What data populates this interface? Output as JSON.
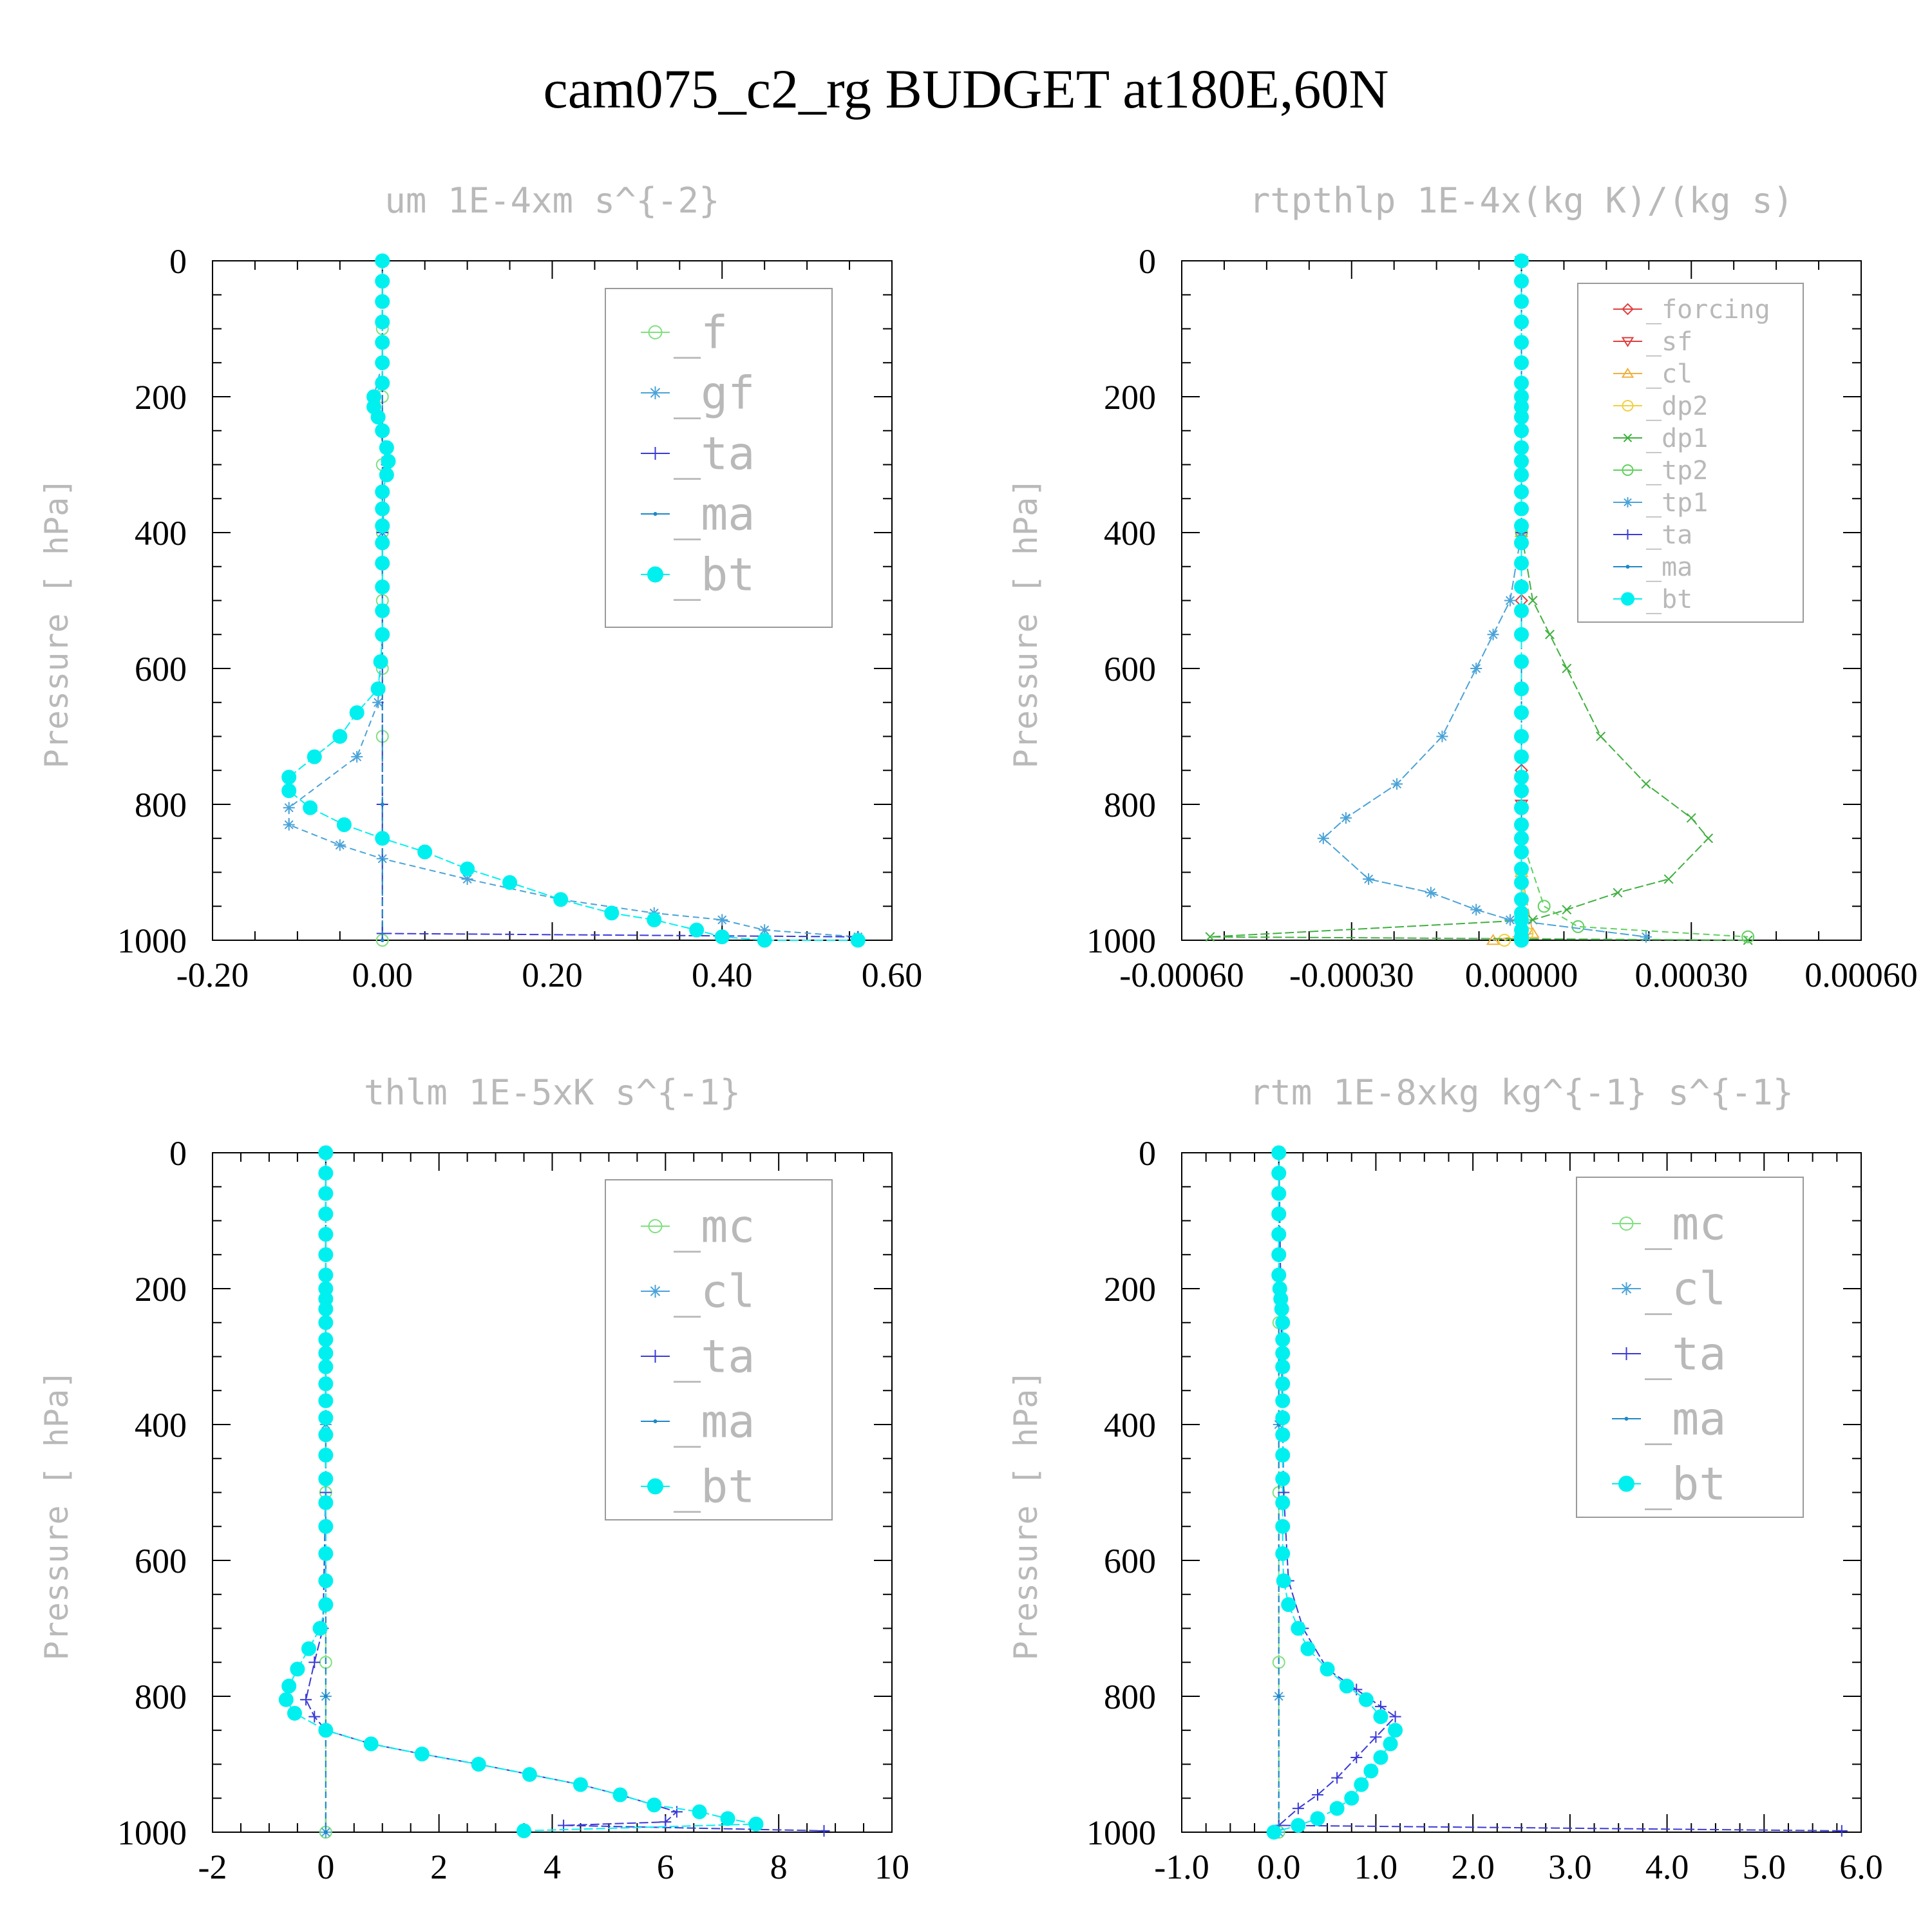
{
  "page": {
    "title": "cam075_c2_rg  BUDGET at180E,60N"
  },
  "chart_data": [
    {
      "type": "line",
      "title": "um  1E-4xm s^{-2}",
      "ylabel": "Pressure [ hPa]",
      "xlabel": "",
      "xlim": [
        -0.2,
        0.6
      ],
      "ylim": [
        1000,
        0
      ],
      "xticks": [
        "-0.20",
        "0.00",
        "0.20",
        "0.40",
        "0.60"
      ],
      "yticks": [
        "0",
        "200",
        "400",
        "600",
        "800",
        "1000"
      ],
      "legend_position": "top-right",
      "series": [
        {
          "name": "_f",
          "color": "#7fe07f",
          "marker": "circle-open",
          "x": [
            0,
            0,
            0,
            0,
            0,
            0,
            0,
            0,
            0,
            0
          ],
          "y": [
            0,
            100,
            200,
            300,
            400,
            500,
            600,
            700,
            850,
            1000
          ]
        },
        {
          "name": "_gf",
          "color": "#4aa3d8",
          "marker": "asterisk",
          "x": [
            0.0,
            0.0,
            -0.01,
            0.005,
            0.0,
            0.0,
            -0.005,
            -0.03,
            -0.11,
            -0.11,
            -0.05,
            0.0,
            0.1,
            0.21,
            0.32,
            0.4,
            0.45,
            0.56
          ],
          "y": [
            0,
            150,
            200,
            300,
            400,
            550,
            650,
            730,
            805,
            830,
            860,
            880,
            910,
            940,
            960,
            970,
            985,
            995
          ]
        },
        {
          "name": "_ta",
          "color": "#3a3ad8",
          "marker": "plus",
          "x": [
            0,
            0,
            0,
            0,
            0.56
          ],
          "y": [
            0,
            400,
            800,
            990,
            995
          ]
        },
        {
          "name": "_ma",
          "color": "#1e88c8",
          "marker": "dot",
          "x": [
            0,
            0,
            0,
            0
          ],
          "y": [
            0,
            400,
            800,
            1000
          ]
        },
        {
          "name": "_bt",
          "color": "#00f0f0",
          "marker": "filled-circle",
          "x": [
            0.0,
            0.0,
            0.0,
            0.0,
            0.0,
            0.0,
            0.0,
            -0.01,
            -0.01,
            -0.005,
            0.0,
            0.005,
            0.007,
            0.005,
            0.0,
            0.0,
            0.0,
            0.0,
            0.0,
            0.0,
            0.0,
            0.0,
            -0.002,
            -0.005,
            -0.03,
            -0.05,
            -0.08,
            -0.11,
            -0.11,
            -0.085,
            -0.045,
            0.0,
            0.05,
            0.1,
            0.15,
            0.21,
            0.27,
            0.32,
            0.37,
            0.4,
            0.45,
            0.56
          ],
          "y": [
            0,
            30,
            60,
            90,
            120,
            150,
            180,
            200,
            215,
            230,
            250,
            275,
            295,
            315,
            340,
            365,
            390,
            415,
            445,
            480,
            515,
            550,
            590,
            630,
            665,
            700,
            730,
            760,
            780,
            805,
            830,
            850,
            870,
            895,
            915,
            940,
            960,
            970,
            985,
            995,
            1000,
            1000
          ]
        }
      ]
    },
    {
      "type": "line",
      "title": "rtpthlp  1E-4x(kg K)/(kg s)",
      "ylabel": "Pressure [ hPa]",
      "xlabel": "",
      "xlim": [
        -0.0006,
        0.0006
      ],
      "ylim": [
        1000,
        0
      ],
      "xticks": [
        "-0.00060",
        "-0.00030",
        "0.00000",
        "0.00030",
        "0.00060"
      ],
      "yticks": [
        "0",
        "200",
        "400",
        "600",
        "800",
        "1000"
      ],
      "legend_position": "top-right",
      "series": [
        {
          "name": "_forcing",
          "color": "#e04040",
          "marker": "diamond",
          "x": [
            0,
            0,
            0,
            0,
            0
          ],
          "y": [
            0,
            250,
            500,
            750,
            1000
          ]
        },
        {
          "name": "_sf",
          "color": "#e04040",
          "marker": "triangle-down",
          "x": [
            0,
            0,
            0,
            0
          ],
          "y": [
            0,
            400,
            800,
            1000
          ]
        },
        {
          "name": "_cl",
          "color": "#f0b040",
          "marker": "triangle-up",
          "x": [
            0,
            0,
            0,
            2e-05,
            -5e-05
          ],
          "y": [
            0,
            400,
            900,
            990,
            1000
          ]
        },
        {
          "name": "_dp2",
          "color": "#f0d040",
          "marker": "circle-open",
          "x": [
            0,
            0,
            0,
            1e-05,
            -3e-05
          ],
          "y": [
            0,
            400,
            900,
            990,
            1000
          ]
        },
        {
          "name": "_dp1",
          "color": "#40b040",
          "marker": "cross",
          "x": [
            0.0,
            2e-05,
            5e-05,
            8e-05,
            0.00014,
            0.00022,
            0.0003,
            0.00033,
            0.00026,
            0.00017,
            8e-05,
            2e-05,
            -0.00055,
            0.0004
          ],
          "y": [
            400,
            500,
            550,
            600,
            700,
            770,
            820,
            850,
            910,
            930,
            955,
            970,
            995,
            1000
          ]
        },
        {
          "name": "_tp2",
          "color": "#60d060",
          "marker": "circle-open",
          "x": [
            0,
            0,
            0,
            4e-05,
            0.0001,
            0.0004
          ],
          "y": [
            0,
            400,
            850,
            950,
            980,
            995
          ]
        },
        {
          "name": "_tp1",
          "color": "#4aa3d8",
          "marker": "asterisk",
          "x": [
            0.0,
            -2e-05,
            -5e-05,
            -8e-05,
            -0.00014,
            -0.00022,
            -0.00031,
            -0.00035,
            -0.00027,
            -0.00016,
            -8e-05,
            -2e-05,
            0.00022
          ],
          "y": [
            400,
            500,
            550,
            600,
            700,
            770,
            820,
            850,
            910,
            930,
            955,
            970,
            995
          ]
        },
        {
          "name": "_ta",
          "color": "#3a3ad8",
          "marker": "plus",
          "x": [
            0,
            0,
            0,
            0
          ],
          "y": [
            0,
            400,
            800,
            1000
          ]
        },
        {
          "name": "_ma",
          "color": "#1e88c8",
          "marker": "dot",
          "x": [
            0,
            0,
            0,
            0
          ],
          "y": [
            0,
            400,
            800,
            1000
          ]
        },
        {
          "name": "_bt",
          "color": "#00f0f0",
          "marker": "filled-circle",
          "x": [
            0,
            0,
            0,
            0,
            0,
            0,
            0,
            0,
            0,
            0,
            0,
            0,
            0,
            0,
            0,
            0,
            0,
            0,
            0,
            0,
            0,
            0,
            0,
            0,
            0,
            0,
            0,
            0,
            0,
            0,
            0,
            0,
            0,
            0,
            0,
            0,
            0,
            0,
            0,
            0,
            0,
            0
          ],
          "y": [
            0,
            30,
            60,
            90,
            120,
            150,
            180,
            200,
            215,
            230,
            250,
            275,
            295,
            315,
            340,
            365,
            390,
            415,
            445,
            480,
            515,
            550,
            590,
            630,
            665,
            700,
            730,
            760,
            780,
            805,
            830,
            850,
            870,
            895,
            915,
            940,
            960,
            970,
            985,
            995,
            1000,
            1000
          ]
        }
      ]
    },
    {
      "type": "line",
      "title": "thlm  1E-5xK s^{-1}",
      "ylabel": "Pressure [ hPa]",
      "xlabel": "",
      "xlim": [
        -2,
        10
      ],
      "ylim": [
        1000,
        0
      ],
      "xticks": [
        "-2",
        "0",
        "2",
        "4",
        "6",
        "8",
        "10"
      ],
      "yticks": [
        "0",
        "200",
        "400",
        "600",
        "800",
        "1000"
      ],
      "legend_position": "top-right",
      "series": [
        {
          "name": "_mc",
          "color": "#7fe07f",
          "marker": "circle-open",
          "x": [
            0,
            0,
            0,
            0,
            0
          ],
          "y": [
            0,
            250,
            500,
            750,
            1000
          ]
        },
        {
          "name": "_cl",
          "color": "#4aa3d8",
          "marker": "asterisk",
          "x": [
            0,
            0,
            0,
            0
          ],
          "y": [
            0,
            400,
            800,
            1000
          ]
        },
        {
          "name": "_ta",
          "color": "#3a3ad8",
          "marker": "plus",
          "x": [
            0.0,
            0.0,
            -0.05,
            -0.2,
            -0.35,
            -0.2,
            0.0,
            0.8,
            1.7,
            2.7,
            3.6,
            4.5,
            5.2,
            5.8,
            6.2,
            6.0,
            4.2,
            8.8
          ],
          "y": [
            0,
            500,
            700,
            750,
            805,
            830,
            850,
            870,
            885,
            900,
            915,
            930,
            945,
            960,
            970,
            985,
            990,
            998
          ]
        },
        {
          "name": "_ma",
          "color": "#1e88c8",
          "marker": "dot",
          "x": [
            0,
            0,
            0,
            0
          ],
          "y": [
            0,
            400,
            800,
            1000
          ]
        },
        {
          "name": "_bt",
          "color": "#00f0f0",
          "marker": "filled-circle",
          "x": [
            0,
            0,
            0,
            0,
            0,
            0,
            0,
            0,
            0,
            0,
            0,
            0,
            0,
            0,
            0,
            0,
            0,
            0,
            0,
            0,
            0,
            0,
            0,
            0,
            0,
            -0.1,
            -0.3,
            -0.5,
            -0.65,
            -0.7,
            -0.55,
            0.0,
            0.8,
            1.7,
            2.7,
            3.6,
            4.5,
            5.2,
            5.8,
            6.6,
            7.1,
            7.6,
            3.5
          ],
          "y": [
            0,
            30,
            60,
            90,
            120,
            150,
            180,
            200,
            215,
            230,
            250,
            275,
            295,
            315,
            340,
            365,
            390,
            415,
            445,
            480,
            515,
            550,
            590,
            630,
            665,
            700,
            730,
            760,
            785,
            805,
            825,
            850,
            870,
            885,
            900,
            915,
            930,
            945,
            960,
            970,
            980,
            988,
            998
          ]
        }
      ]
    },
    {
      "type": "line",
      "title": "rtm  1E-8xkg kg^{-1} s^{-1}",
      "ylabel": "Pressure [ hPa]",
      "xlabel": "",
      "xlim": [
        -1.0,
        6.0
      ],
      "ylim": [
        1000,
        0
      ],
      "xticks": [
        "-1.0",
        "0.0",
        "1.0",
        "2.0",
        "3.0",
        "4.0",
        "5.0",
        "6.0"
      ],
      "yticks": [
        "0",
        "200",
        "400",
        "600",
        "800",
        "1000"
      ],
      "legend_position": "top-right",
      "series": [
        {
          "name": "_mc",
          "color": "#7fe07f",
          "marker": "circle-open",
          "x": [
            0,
            0,
            0,
            0,
            0
          ],
          "y": [
            0,
            250,
            500,
            750,
            1000
          ]
        },
        {
          "name": "_cl",
          "color": "#4aa3d8",
          "marker": "asterisk",
          "x": [
            0,
            0,
            0,
            0
          ],
          "y": [
            0,
            400,
            800,
            1000
          ]
        },
        {
          "name": "_ta",
          "color": "#3a3ad8",
          "marker": "plus",
          "x": [
            0.0,
            0.02,
            0.05,
            0.1,
            0.25,
            0.5,
            0.8,
            1.05,
            1.2,
            1.0,
            0.8,
            0.6,
            0.4,
            0.2,
            0.0,
            5.8
          ],
          "y": [
            0,
            200,
            500,
            630,
            700,
            760,
            790,
            815,
            830,
            860,
            890,
            920,
            945,
            965,
            990,
            998
          ]
        },
        {
          "name": "_ma",
          "color": "#1e88c8",
          "marker": "dot",
          "x": [
            0,
            0,
            0,
            0
          ],
          "y": [
            0,
            400,
            800,
            1000
          ]
        },
        {
          "name": "_bt",
          "color": "#00f0f0",
          "marker": "filled-circle",
          "x": [
            0.0,
            0.0,
            0.0,
            0.0,
            0.0,
            0.0,
            0.0,
            0.01,
            0.02,
            0.03,
            0.04,
            0.04,
            0.04,
            0.04,
            0.04,
            0.04,
            0.04,
            0.04,
            0.04,
            0.04,
            0.04,
            0.04,
            0.04,
            0.05,
            0.1,
            0.2,
            0.3,
            0.5,
            0.7,
            0.9,
            1.05,
            1.2,
            1.15,
            1.05,
            0.95,
            0.85,
            0.75,
            0.6,
            0.4,
            0.2,
            -0.05
          ],
          "y": [
            0,
            30,
            60,
            90,
            120,
            150,
            180,
            200,
            215,
            230,
            250,
            275,
            295,
            315,
            340,
            365,
            390,
            415,
            445,
            480,
            515,
            550,
            590,
            630,
            665,
            700,
            730,
            760,
            785,
            805,
            830,
            850,
            870,
            890,
            910,
            930,
            950,
            965,
            980,
            990,
            1000
          ]
        }
      ]
    }
  ]
}
